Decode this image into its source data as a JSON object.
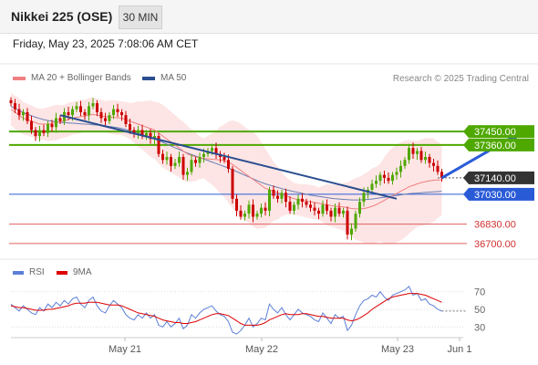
{
  "header": {
    "title": "Nikkei 225 (OSE)",
    "timeframe": "30 MIN"
  },
  "date_line": "Friday, May 23, 2025 7:08:06 AM CET",
  "legend": {
    "ma20": {
      "label": "MA 20 + Bollinger Bands",
      "color": "#f08080"
    },
    "ma50": {
      "label": "MA 50",
      "color": "#2a4d8f"
    }
  },
  "credit": "Research © 2025 Trading Central",
  "rsi_legend": {
    "rsi": {
      "label": "RSI",
      "color": "#5b7fd6"
    },
    "ma9": {
      "label": "9MA",
      "color": "#dd0000"
    }
  },
  "colors": {
    "resistance": "#4fa800",
    "pivot": "#2a5bd7",
    "support": "#e06060",
    "bollinger_fill": "#fde0e0",
    "candle_up": "#4fa800",
    "candle_down": "#cc0000",
    "last_price_box": "#333333"
  },
  "chart_data": [
    {
      "type": "candlestick",
      "x_labels": [
        "May 21",
        "May 22",
        "May 23",
        "Jun 1"
      ],
      "ylim": [
        36620,
        37720
      ],
      "price_levels": [
        {
          "label": "37450.00",
          "value": 37450,
          "kind": "resistance"
        },
        {
          "label": "37360.00",
          "value": 37360,
          "kind": "resistance"
        },
        {
          "label": "37140.00",
          "value": 37140,
          "kind": "last"
        },
        {
          "label": "37030.00",
          "value": 37030,
          "kind": "pivot"
        },
        {
          "label": "36830.00",
          "value": 36830,
          "kind": "support"
        },
        {
          "label": "36700.00",
          "value": 36700,
          "kind": "support"
        }
      ],
      "close": [
        37640,
        37600,
        37560,
        37580,
        37520,
        37460,
        37420,
        37460,
        37440,
        37500,
        37480,
        37540,
        37520,
        37580,
        37560,
        37600,
        37620,
        37580,
        37560,
        37620,
        37640,
        37580,
        37540,
        37520,
        37560,
        37600,
        37580,
        37560,
        37500,
        37460,
        37440,
        37460,
        37420,
        37440,
        37400,
        37420,
        37300,
        37260,
        37280,
        37220,
        37240,
        37280,
        37160,
        37180,
        37260,
        37240,
        37280,
        37300,
        37320,
        37340,
        37300,
        37280,
        37260,
        37200,
        37000,
        36920,
        36880,
        36900,
        36960,
        36880,
        36900,
        36940,
        36920,
        37060,
        37020,
        37000,
        37040,
        36980,
        36920,
        36960,
        37000,
        36980,
        36960,
        36940,
        36920,
        36900,
        36960,
        36920,
        36880,
        36940,
        36900,
        36920,
        36760,
        36800,
        36900,
        36980,
        37040,
        37060,
        37100,
        37120,
        37160,
        37140,
        37120,
        37160,
        37180,
        37220,
        37260,
        37340,
        37300,
        37320,
        37260,
        37280,
        37240,
        37220,
        37180,
        37140
      ],
      "ma20": [
        37600,
        37580,
        37560,
        37540,
        37530,
        37520,
        37510,
        37500,
        37500,
        37500,
        37505,
        37510,
        37515,
        37520,
        37530,
        37540,
        37545,
        37550,
        37555,
        37560,
        37565,
        37560,
        37555,
        37550,
        37548,
        37545,
        37542,
        37540,
        37530,
        37520,
        37510,
        37500,
        37490,
        37480,
        37470,
        37460,
        37440,
        37420,
        37400,
        37380,
        37360,
        37340,
        37320,
        37300,
        37290,
        37280,
        37275,
        37270,
        37268,
        37265,
        37262,
        37260,
        37255,
        37245,
        37230,
        37210,
        37190,
        37170,
        37150,
        37130,
        37110,
        37090,
        37070,
        37060,
        37050,
        37040,
        37030,
        37020,
        37010,
        37000,
        36995,
        36990,
        36985,
        36980,
        36975,
        36970,
        36965,
        36960,
        36955,
        36950,
        36948,
        36946,
        36940,
        36935,
        36932,
        36932,
        36935,
        36940,
        36950,
        36960,
        36975,
        36990,
        37005,
        37020,
        37035,
        37050,
        37065,
        37080,
        37090,
        37100,
        37108,
        37115,
        37120,
        37124,
        37126,
        37128
      ],
      "ma50": [
        37620,
        37605,
        37590,
        37578,
        37566,
        37556,
        37546,
        37538,
        37530,
        37524,
        37520,
        37516,
        37512,
        37510,
        37508,
        37506,
        37504,
        37502,
        37500,
        37498,
        37496,
        37494,
        37492,
        37488,
        37484,
        37480,
        37476,
        37470,
        37464,
        37456,
        37448,
        37440,
        37430,
        37420,
        37410,
        37400,
        37390,
        37378,
        37366,
        37354,
        37342,
        37330,
        37318,
        37306,
        37296,
        37286,
        37276,
        37266,
        37256,
        37246,
        37236,
        37226,
        37216,
        37206,
        37194,
        37182,
        37170,
        37158,
        37146,
        37134,
        37122,
        37110,
        37100,
        37092,
        37084,
        37076,
        37068,
        37060,
        37054,
        37048,
        37042,
        37036,
        37030,
        37024,
        37020,
        37016,
        37012,
        37008,
        37004,
        37000,
        36998,
        36996,
        36994,
        36992,
        36992,
        36992,
        36994,
        36996,
        36998,
        37002,
        37006,
        37010,
        37014,
        37018,
        37022,
        37026,
        37030,
        37034,
        37036,
        37038,
        37040,
        37042,
        37044,
        37046,
        37048,
        37050
      ],
      "trendlines": [
        {
          "from": {
            "index": 12,
            "value": 37560
          },
          "to": {
            "index": 94,
            "value": 37000
          }
        }
      ],
      "projection": {
        "from": {
          "index": 105,
          "value": 37140
        },
        "to": {
          "index": 124,
          "value": 37440
        }
      }
    },
    {
      "type": "line",
      "ylim": [
        20,
        80
      ],
      "y_ticks": [
        "70",
        "50",
        "30"
      ],
      "series": [
        {
          "name": "RSI",
          "values": [
            56,
            52,
            48,
            54,
            50,
            46,
            44,
            52,
            48,
            56,
            52,
            58,
            54,
            60,
            56,
            62,
            64,
            56,
            52,
            60,
            64,
            54,
            48,
            46,
            54,
            60,
            56,
            52,
            44,
            40,
            38,
            44,
            40,
            46,
            40,
            44,
            32,
            30,
            36,
            30,
            34,
            40,
            28,
            32,
            44,
            40,
            46,
            50,
            52,
            54,
            48,
            44,
            42,
            36,
            24,
            22,
            26,
            32,
            40,
            30,
            34,
            40,
            38,
            56,
            50,
            46,
            52,
            44,
            38,
            44,
            50,
            46,
            44,
            42,
            38,
            36,
            46,
            40,
            34,
            44,
            40,
            42,
            26,
            32,
            44,
            54,
            60,
            62,
            66,
            64,
            70,
            64,
            60,
            66,
            68,
            70,
            72,
            76,
            66,
            68,
            60,
            62,
            56,
            54,
            50,
            48
          ]
        },
        {
          "name": "9MA",
          "values": [
            54,
            53,
            52,
            52,
            51,
            50,
            49,
            49,
            49,
            50,
            50,
            51,
            52,
            53,
            54,
            56,
            57,
            57,
            57,
            58,
            58,
            58,
            57,
            56,
            55,
            55,
            55,
            54,
            52,
            50,
            48,
            46,
            45,
            44,
            43,
            42,
            40,
            38,
            37,
            36,
            35,
            35,
            34,
            34,
            35,
            36,
            38,
            40,
            42,
            44,
            45,
            45,
            44,
            43,
            40,
            37,
            34,
            32,
            32,
            32,
            32,
            33,
            35,
            38,
            40,
            42,
            44,
            45,
            44,
            44,
            44,
            45,
            45,
            44,
            43,
            42,
            42,
            41,
            40,
            40,
            40,
            40,
            38,
            37,
            38,
            40,
            43,
            46,
            50,
            53,
            56,
            59,
            62,
            64,
            65,
            66,
            67,
            68,
            68,
            68,
            67,
            66,
            64,
            62,
            60,
            58
          ]
        }
      ]
    }
  ]
}
